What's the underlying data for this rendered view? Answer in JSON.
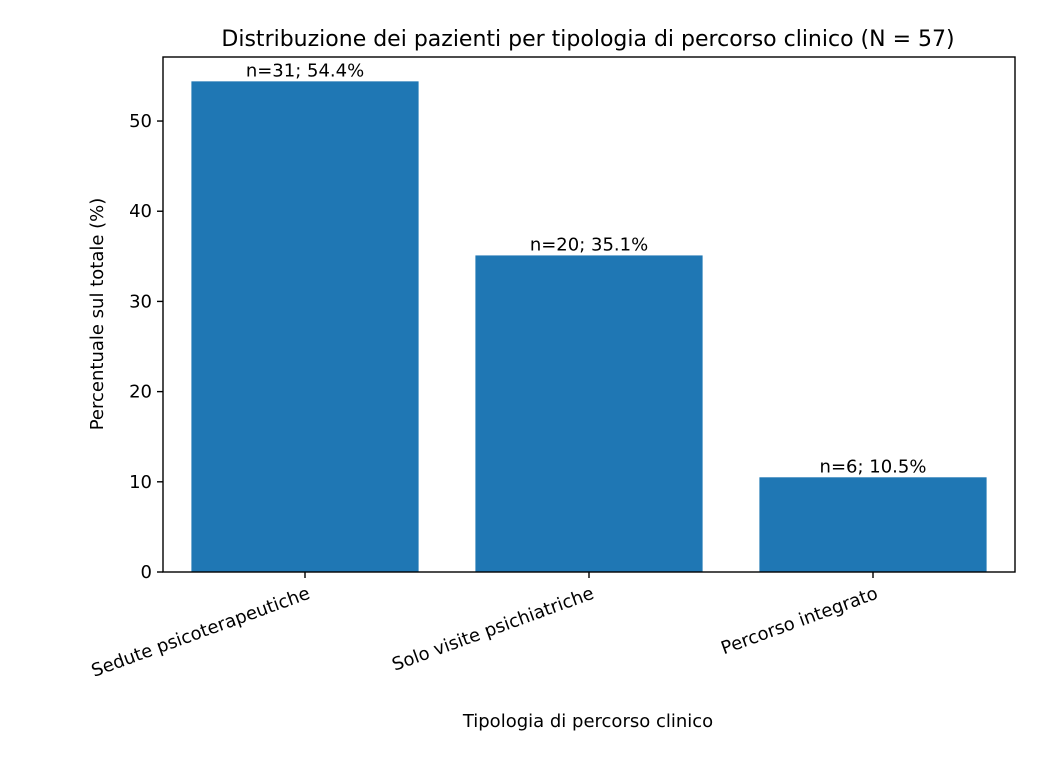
{
  "chart_data": {
    "type": "bar",
    "title": "Distribuzione dei pazienti per tipologia di percorso clinico (N = 57)",
    "xlabel": "Tipologia di percorso clinico",
    "ylabel": "Percentuale sul totale (%)",
    "categories": [
      "Sedute psicoterapeutiche",
      "Solo visite psichiatriche",
      "Percorso integrato"
    ],
    "values": [
      54.4,
      35.1,
      10.5
    ],
    "data_labels": [
      "n=31; 54.4%",
      "n=20; 35.1%",
      "n=6; 10.5%"
    ],
    "ylim": [
      0,
      57.1
    ],
    "yticks": [
      0,
      10,
      20,
      30,
      40,
      50
    ],
    "bar_color": "#1f77b4",
    "grid": false,
    "legend": "none"
  }
}
